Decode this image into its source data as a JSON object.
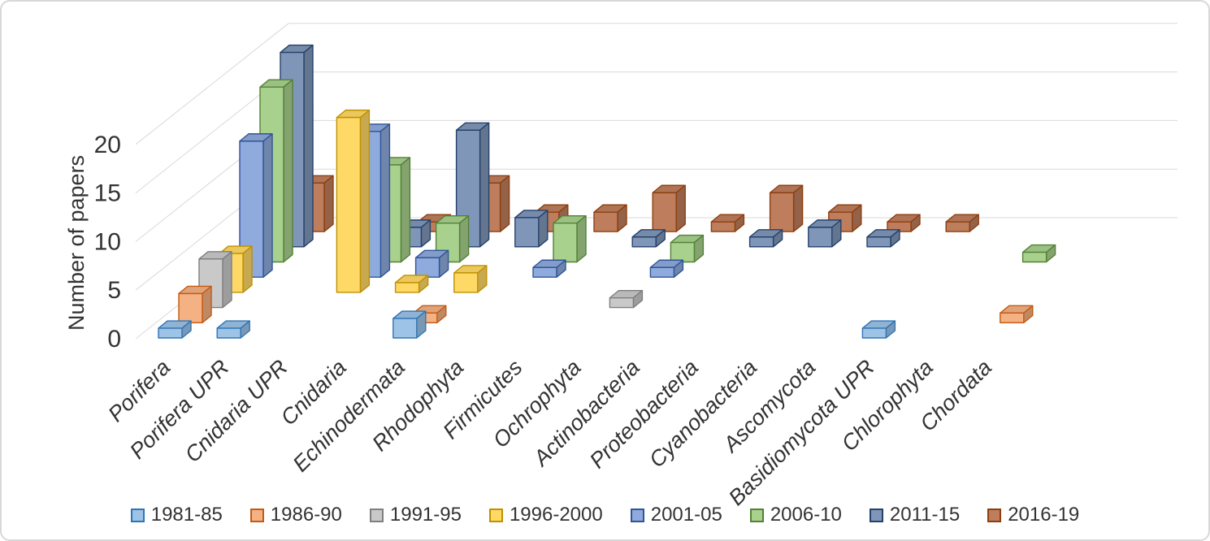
{
  "figure": {
    "background": "#FFFFFF",
    "frame_border_color": "#D8D8D8"
  },
  "chart_data": {
    "type": "bar",
    "style": "3d-column",
    "title": "",
    "xlabel": "",
    "ylabel": "Number of papers",
    "yticks": [
      0,
      5,
      10,
      15,
      20
    ],
    "ylim": [
      0,
      22
    ],
    "grid": true,
    "grid_color": "#D9D9D9",
    "text_color": "#333333",
    "legend_position": "bottom",
    "categories": [
      "Porifera",
      "Porifera UPR",
      "Cnidaria UPR",
      "Cnidaria",
      "Echinodermata",
      "Rhodophyta",
      "Firmicutes",
      "Ochrophyta",
      "Actinobacteria",
      "Proteobacteria",
      "Cyanobacteria",
      "Ascomycota",
      "Basidiomycota UPR",
      "Chlorophyta",
      "Chordata"
    ],
    "series": [
      {
        "name": "1981-85",
        "fill": "#9DC3E6",
        "border": "#2E75B6",
        "values": [
          1,
          1,
          0,
          0,
          2,
          0,
          0,
          0,
          0,
          0,
          0,
          0,
          1,
          0,
          0
        ]
      },
      {
        "name": "1986-90",
        "fill": "#F4B183",
        "border": "#C55A11",
        "values": [
          3,
          0,
          0,
          0,
          1,
          0,
          0,
          0,
          0,
          0,
          0,
          0,
          0,
          0,
          1
        ]
      },
      {
        "name": "1991-95",
        "fill": "#C9C9C9",
        "border": "#7F7F7F",
        "values": [
          5,
          0,
          0,
          0,
          0,
          0,
          0,
          1,
          0,
          0,
          0,
          0,
          0,
          0,
          0
        ]
      },
      {
        "name": "1996-2000",
        "fill": "#FFD966",
        "border": "#BF9000",
        "values": [
          4,
          0,
          18,
          1,
          2,
          0,
          0,
          0,
          0,
          0,
          0,
          0,
          0,
          0,
          0
        ]
      },
      {
        "name": "2001-05",
        "fill": "#8FAADC",
        "border": "#2F5597",
        "values": [
          14,
          0,
          15,
          2,
          0,
          1,
          0,
          1,
          0,
          0,
          0,
          0,
          0,
          0,
          0
        ]
      },
      {
        "name": "2006-10",
        "fill": "#A9D18E",
        "border": "#538135",
        "values": [
          18,
          0,
          10,
          4,
          0,
          4,
          0,
          2,
          0,
          0,
          0,
          0,
          0,
          1,
          0
        ]
      },
      {
        "name": "2011-15",
        "fill": "#8096B8",
        "border": "#24426B",
        "values": [
          20,
          0,
          2,
          12,
          3,
          0,
          1,
          0,
          1,
          2,
          1,
          0,
          0,
          0,
          0
        ]
      },
      {
        "name": "2016-19",
        "fill": "#BE7D5C",
        "border": "#8E3F0D",
        "values": [
          5,
          0,
          1,
          5,
          2,
          2,
          4,
          1,
          4,
          2,
          1,
          1,
          0,
          0,
          0
        ]
      }
    ]
  }
}
